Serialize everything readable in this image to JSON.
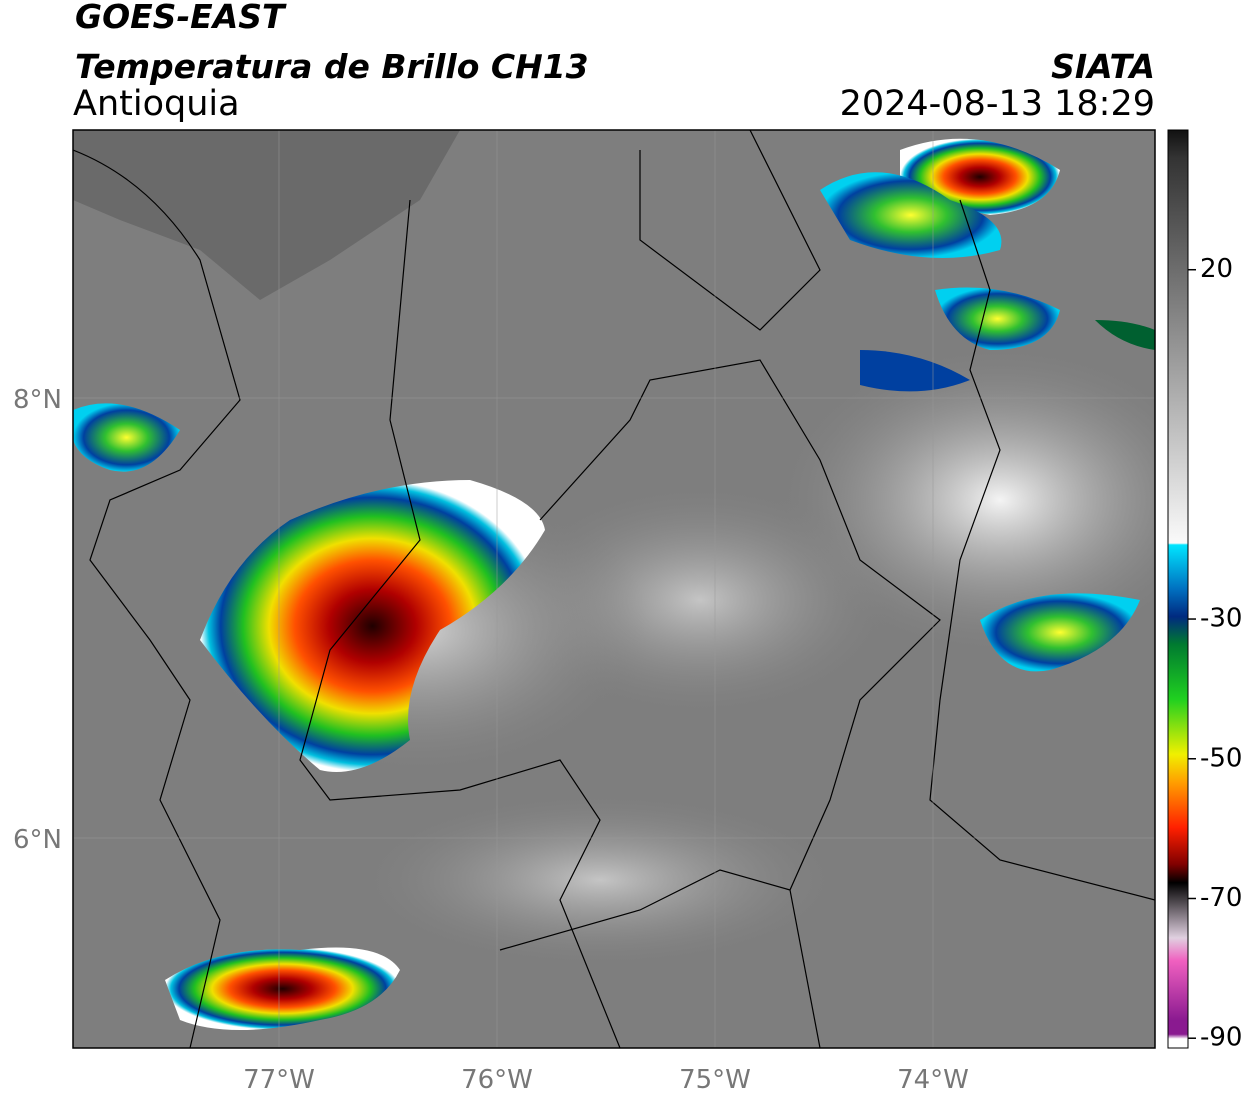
{
  "header": {
    "title": "GOES-EAST",
    "subtitle": "Temperatura de Brillo CH13",
    "region": "Antioquia",
    "source": "SIATA",
    "timestamp": "2024-08-13 18:29"
  },
  "map": {
    "lat_labels": [
      "8°N",
      "6°N"
    ],
    "lon_labels": [
      "77°W",
      "76°W",
      "75°W",
      "74°W"
    ]
  },
  "colorbar": {
    "lim": [
      -91.4,
      40
    ],
    "ticks": [
      20,
      -30,
      -50,
      -70,
      -90
    ]
  }
}
